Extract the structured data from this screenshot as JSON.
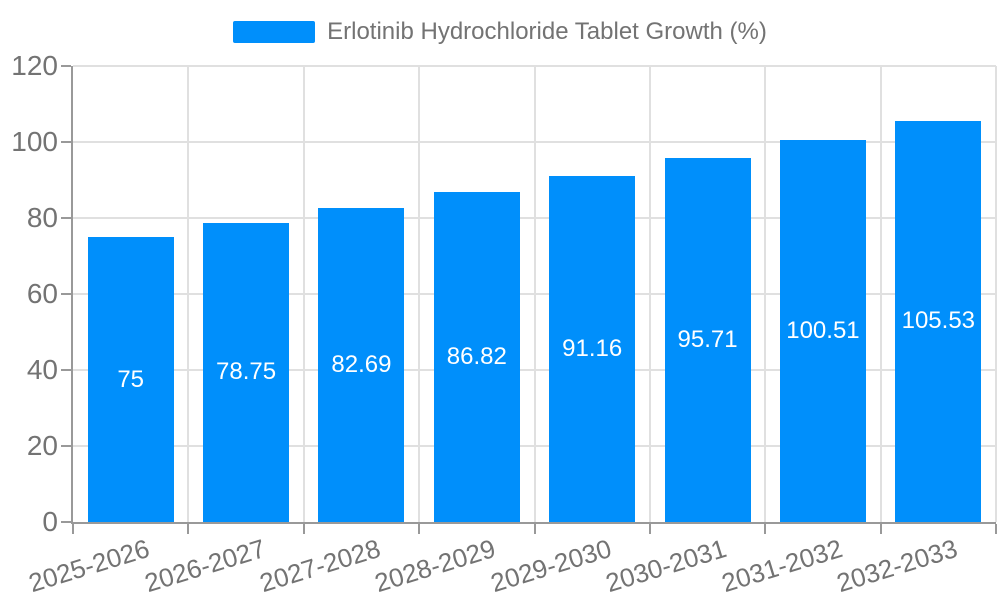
{
  "legend": {
    "label": "Erlotinib Hydrochloride Tablet Growth (%)"
  },
  "chart_data": {
    "type": "bar",
    "title": "Erlotinib Hydrochloride Tablet Growth (%)",
    "categories": [
      "2025-2026",
      "2026-2027",
      "2027-2028",
      "2028-2029",
      "2029-2030",
      "2030-2031",
      "2031-2032",
      "2032-2033"
    ],
    "values": [
      75,
      78.75,
      82.69,
      86.82,
      91.16,
      95.71,
      100.51,
      105.53
    ],
    "value_labels": [
      "75",
      "78.75",
      "82.69",
      "86.82",
      "91.16",
      "95.71",
      "100.51",
      "105.53"
    ],
    "series_name": "Erlotinib Hydrochloride Tablet Growth (%)",
    "xlabel": "",
    "ylabel": "",
    "ylim": [
      0,
      120
    ],
    "ytick_step": 20,
    "ytick_labels": [
      "0",
      "20",
      "40",
      "60",
      "80",
      "100",
      "120"
    ],
    "grid": "both",
    "legend_position": "top-center",
    "colors": {
      "bar": "#008FFB",
      "gridline": "#e0e0e0",
      "axis_line": "#999999",
      "tick_label": "#737373",
      "value_label": "#ffffff"
    }
  }
}
